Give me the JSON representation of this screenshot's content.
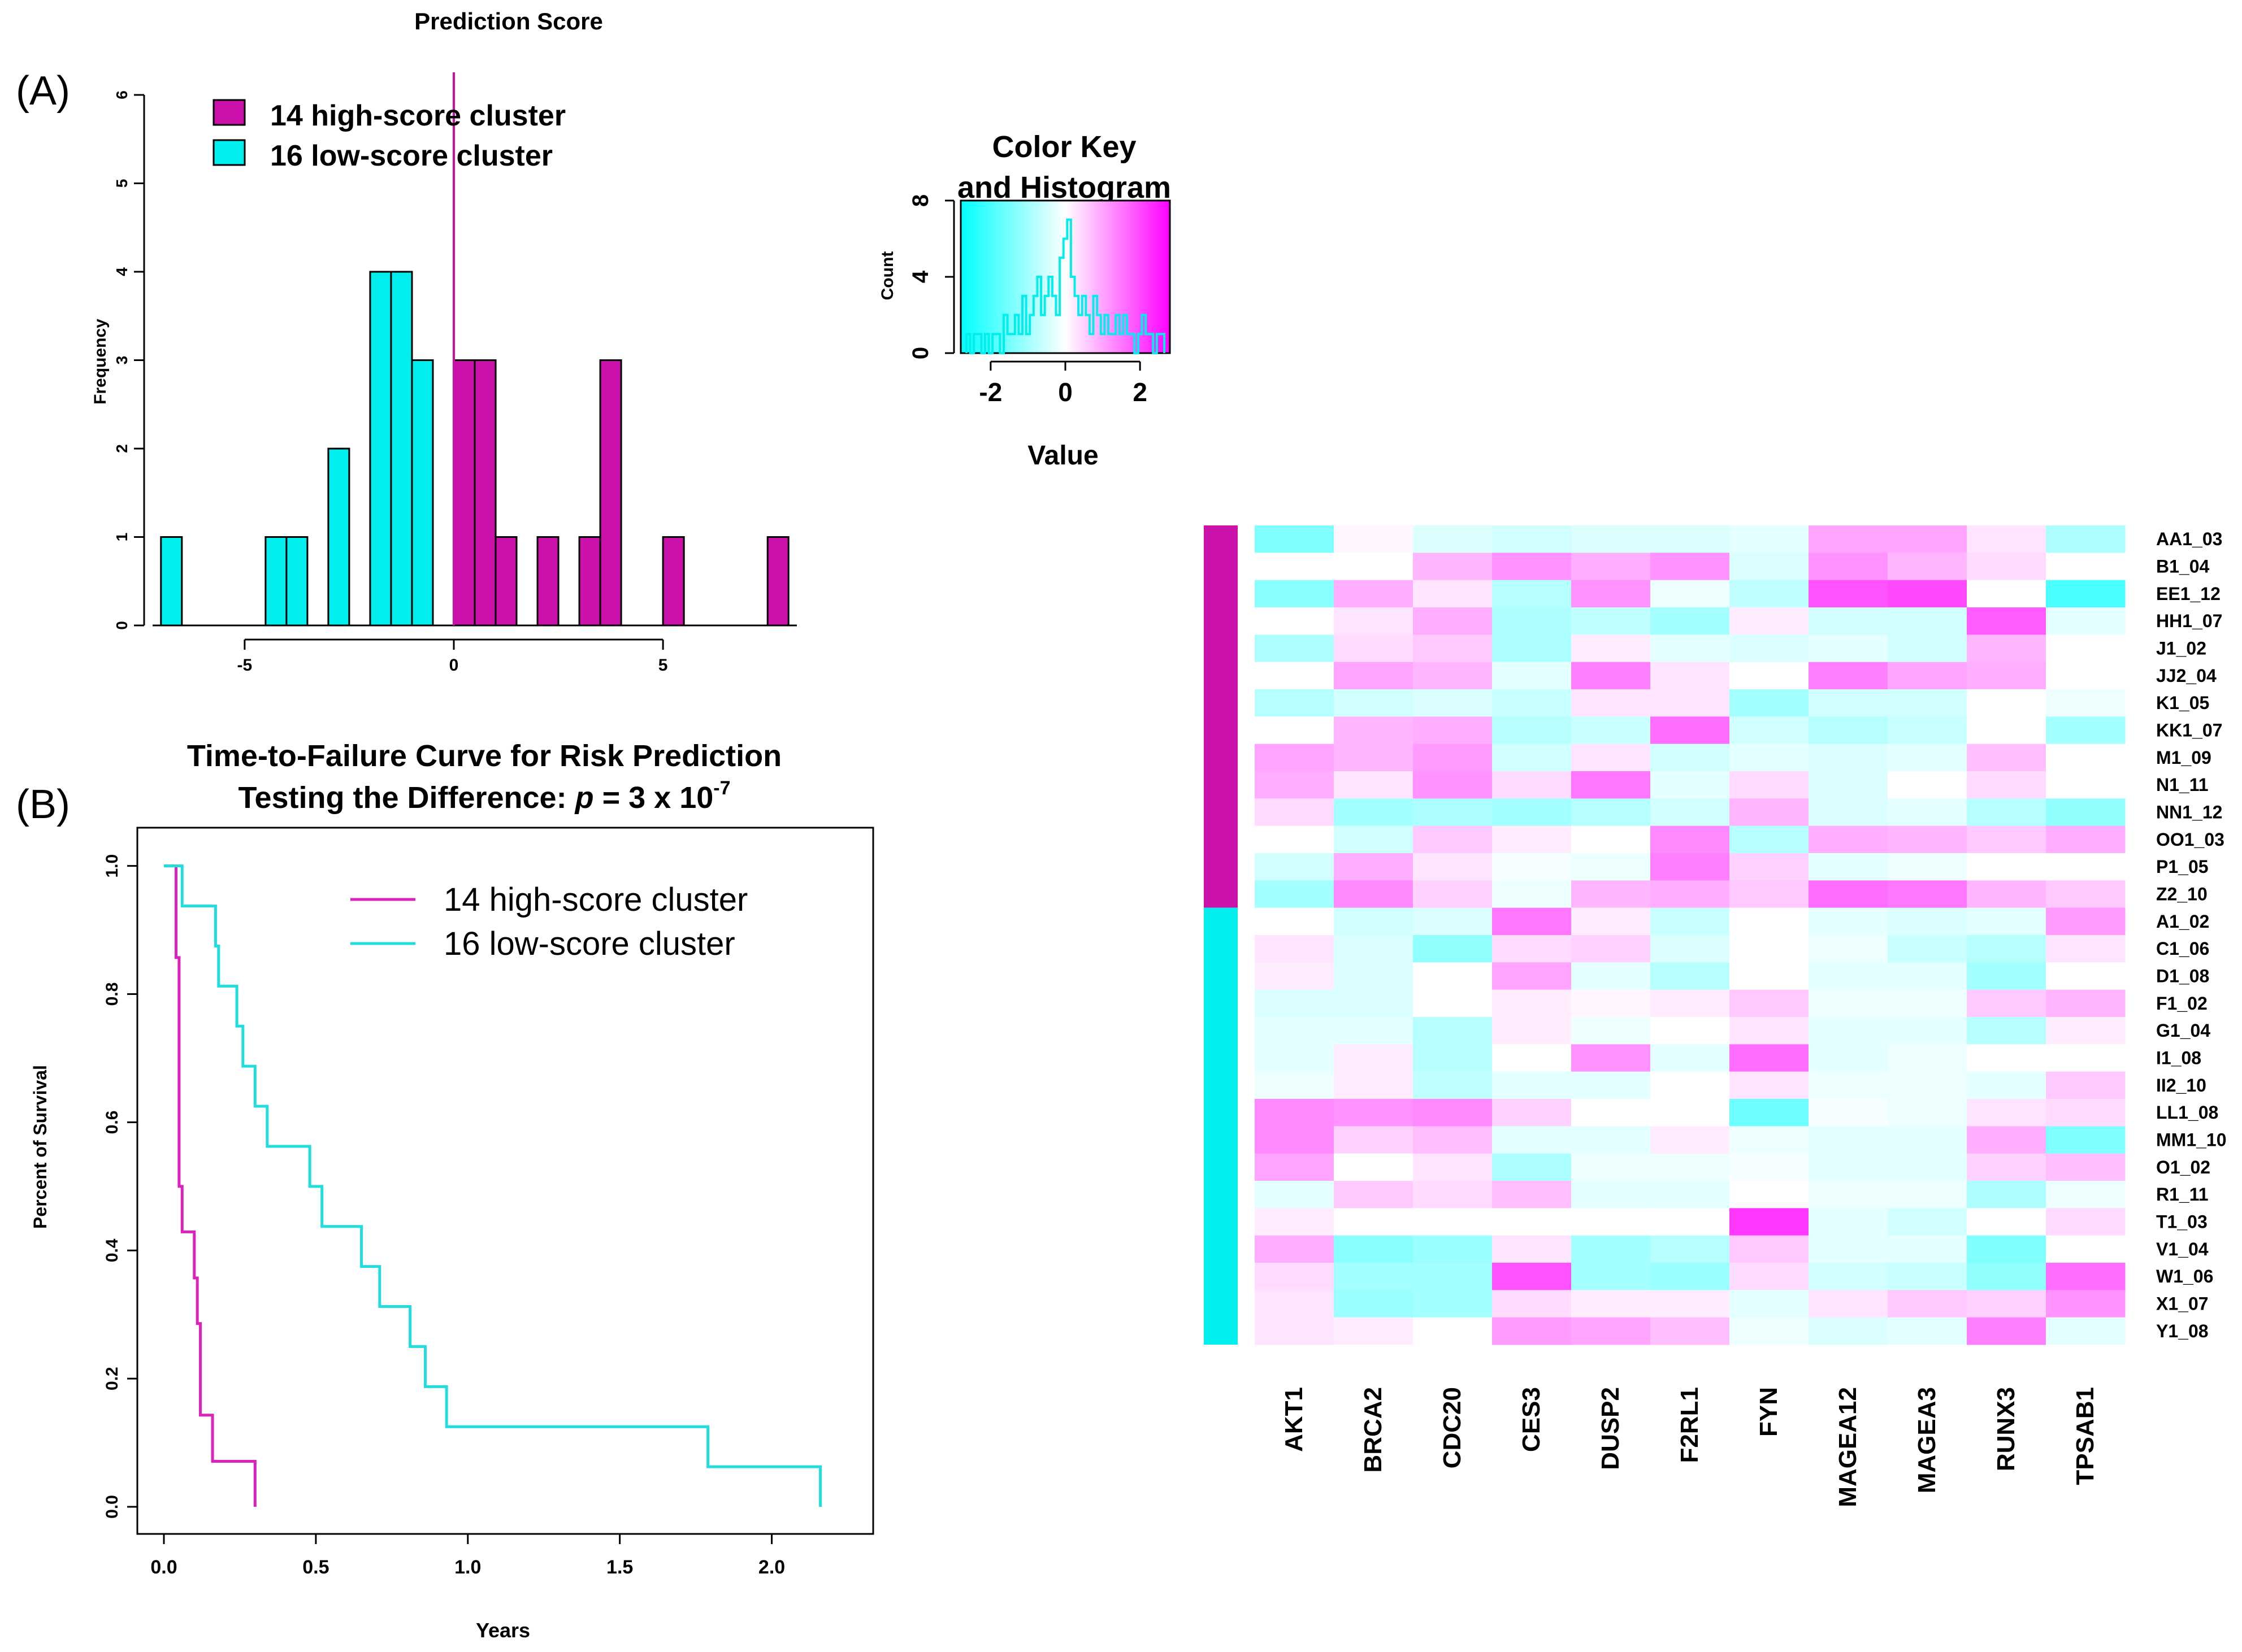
{
  "panel_labels": {
    "a": "(A)",
    "b": "(B)"
  },
  "chart_data": [
    {
      "id": "histogram",
      "type": "bar",
      "title": "Prediction Score",
      "xlabel": "",
      "ylabel": "Frequency",
      "xlim": [
        -7.2,
        8.2
      ],
      "ylim": [
        0,
        6
      ],
      "xticks": [
        -5,
        0,
        5
      ],
      "yticks": [
        0,
        1,
        2,
        3,
        4,
        5,
        6
      ],
      "bin_width": 0.5,
      "cutoff": 0,
      "series": [
        {
          "name": "14 high-score cluster",
          "color": "#cc11aa",
          "bins": [
            [
              0,
              0.5,
              3
            ],
            [
              0.5,
              1,
              3
            ],
            [
              1,
              1.5,
              1
            ],
            [
              2,
              2.5,
              1
            ],
            [
              3,
              3.5,
              1
            ],
            [
              3.5,
              4,
              3
            ],
            [
              5,
              5.5,
              1
            ],
            [
              7.5,
              8,
              1
            ]
          ]
        },
        {
          "name": "16 low-score cluster",
          "color": "#00eeee",
          "bins": [
            [
              -7,
              -6.5,
              1
            ],
            [
              -4.5,
              -4,
              1
            ],
            [
              -4,
              -3.5,
              1
            ],
            [
              -3,
              -2.5,
              2
            ],
            [
              -2,
              -1.5,
              4
            ],
            [
              -1.5,
              -1,
              4
            ],
            [
              -1,
              -0.5,
              3
            ]
          ]
        }
      ]
    },
    {
      "id": "color-key",
      "type": "bar",
      "title": "Color Key",
      "subtitle": "and Histogram",
      "xlabel": "Value",
      "ylabel": "Count",
      "xlim": [
        -2.8,
        2.8
      ],
      "ylim": [
        0,
        8
      ],
      "xticks": [
        -2,
        0,
        2
      ],
      "yticks": [
        0,
        4,
        8
      ],
      "x": [
        -2.6,
        -2.5,
        -2.4,
        -2.3,
        -2.2,
        -2.1,
        -2.0,
        -1.9,
        -1.8,
        -1.7,
        -1.6,
        -1.5,
        -1.4,
        -1.3,
        -1.2,
        -1.1,
        -1.0,
        -0.9,
        -0.8,
        -0.7,
        -0.6,
        -0.5,
        -0.4,
        -0.3,
        -0.2,
        -0.1,
        0.0,
        0.1,
        0.2,
        0.3,
        0.4,
        0.5,
        0.6,
        0.7,
        0.8,
        0.9,
        1.0,
        1.1,
        1.2,
        1.3,
        1.4,
        1.5,
        1.6,
        1.7,
        1.8,
        1.9,
        2.0,
        2.1,
        2.2,
        2.3,
        2.4,
        2.5,
        2.6
      ],
      "values": [
        1,
        0,
        1,
        1,
        0,
        1,
        0,
        1,
        1,
        0,
        2,
        1,
        1,
        2,
        1,
        3,
        1,
        2,
        3,
        4,
        2,
        3,
        4,
        3,
        2,
        5,
        6,
        7,
        4,
        3,
        2,
        3,
        2,
        1,
        3,
        2,
        1,
        2,
        1,
        1,
        2,
        1,
        2,
        1,
        1,
        0,
        1,
        2,
        1,
        1,
        0,
        1,
        1
      ]
    },
    {
      "id": "survival",
      "type": "line",
      "title": "Time-to-Failure Curve for Risk Prediction",
      "subtitle_prefix": "Testing the Difference: ",
      "subtitle_p": "p",
      "subtitle_eq": " = 3 x 10",
      "subtitle_exp": "-7",
      "xlabel": "Years",
      "ylabel": "Percent of Survival",
      "xlim": [
        0,
        2.25
      ],
      "ylim": [
        0,
        1.02
      ],
      "xticks": [
        "0.0",
        "0.5",
        "1.0",
        "1.5",
        "2.0"
      ],
      "yticks": [
        "0.0",
        "0.2",
        "0.4",
        "0.6",
        "0.8",
        "1.0"
      ],
      "series": [
        {
          "name": "14 high-score cluster",
          "color": "#dd22bb",
          "steps": [
            [
              0,
              1.0
            ],
            [
              0.04,
              0.857
            ],
            [
              0.05,
              0.5
            ],
            [
              0.06,
              0.429
            ],
            [
              0.1,
              0.357
            ],
            [
              0.11,
              0.286
            ],
            [
              0.12,
              0.143
            ],
            [
              0.16,
              0.071
            ],
            [
              0.3,
              0.0
            ]
          ]
        },
        {
          "name": "16 low-score cluster",
          "color": "#22dddd",
          "steps": [
            [
              0,
              1.0
            ],
            [
              0.06,
              0.9375
            ],
            [
              0.17,
              0.875
            ],
            [
              0.18,
              0.8125
            ],
            [
              0.24,
              0.75
            ],
            [
              0.26,
              0.6875
            ],
            [
              0.3,
              0.625
            ],
            [
              0.34,
              0.5625
            ],
            [
              0.48,
              0.5
            ],
            [
              0.52,
              0.4375
            ],
            [
              0.65,
              0.375
            ],
            [
              0.71,
              0.3125
            ],
            [
              0.81,
              0.25
            ],
            [
              0.86,
              0.1875
            ],
            [
              0.93,
              0.125
            ],
            [
              1.79,
              0.0625
            ],
            [
              2.16,
              0.0
            ]
          ]
        }
      ]
    },
    {
      "id": "heatmap",
      "type": "heatmap",
      "columns": [
        "AKT1",
        "BRCA2",
        "CDC20",
        "CES3",
        "DUSP2",
        "F2RL1",
        "FYN",
        "MAGEA12",
        "MAGEA3",
        "RUNX3",
        "TPSAB1"
      ],
      "rows": [
        "AA1_03",
        "B1_04",
        "EE1_12",
        "HH1_07",
        "J1_02",
        "JJ2_04",
        "K1_05",
        "KK1_07",
        "M1_09",
        "N1_11",
        "NN1_12",
        "OO1_03",
        "P1_05",
        "Z2_10",
        "A1_02",
        "C1_06",
        "D1_08",
        "F1_02",
        "G1_04",
        "I1_08",
        "II2_10",
        "LL1_08",
        "MM1_10",
        "O1_02",
        "R1_11",
        "T1_03",
        "V1_04",
        "W1_06",
        "X1_07",
        "Y1_08"
      ],
      "row_groups": [
        {
          "name": "14 high-score cluster",
          "color": "#cc11aa",
          "count": 14
        },
        {
          "name": "16 low-score cluster",
          "color": "#00eeee",
          "count": 16
        }
      ],
      "value_range": [
        -2.8,
        2.8
      ],
      "values": [
        [
          -1.4,
          0.1,
          -0.4,
          -0.5,
          -0.4,
          -0.4,
          -0.3,
          1.0,
          1.0,
          0.3,
          -0.9
        ],
        [
          0,
          0,
          0.8,
          1.2,
          0.9,
          1.2,
          -0.4,
          1.2,
          0.8,
          0.4,
          0
        ],
        [
          -1.3,
          0.9,
          0.3,
          -0.8,
          1.2,
          -0.2,
          -0.7,
          1.9,
          2.0,
          0,
          -2.0
        ],
        [
          0,
          0.3,
          0.9,
          -0.9,
          -0.7,
          -1.0,
          0.2,
          -0.5,
          -0.5,
          1.8,
          -0.3
        ],
        [
          -0.9,
          0.4,
          0.6,
          -0.9,
          0.2,
          -0.3,
          -0.4,
          -0.3,
          -0.5,
          0.8,
          0
        ],
        [
          0,
          1.0,
          0.8,
          -0.3,
          1.4,
          0.3,
          0,
          1.4,
          1.0,
          0.9,
          0
        ],
        [
          -0.8,
          -0.5,
          -0.4,
          -0.6,
          0.3,
          0.3,
          -1.0,
          -0.5,
          -0.5,
          0,
          -0.2
        ],
        [
          0,
          0.8,
          0.9,
          -0.8,
          -0.6,
          1.6,
          -0.5,
          -0.8,
          -0.6,
          0,
          -1.0
        ],
        [
          1.0,
          0.8,
          1.1,
          -0.5,
          0.3,
          -0.5,
          -0.3,
          -0.4,
          -0.3,
          0.7,
          0
        ],
        [
          0.9,
          0.3,
          1.2,
          0.4,
          1.5,
          -0.3,
          0.4,
          -0.4,
          0,
          0.4,
          0
        ],
        [
          0.4,
          -1.0,
          -0.9,
          -1.0,
          -0.8,
          -0.5,
          0.8,
          -0.4,
          -0.3,
          -0.8,
          -1.2
        ],
        [
          0,
          -0.5,
          0.6,
          0.2,
          0,
          1.3,
          -0.8,
          0.9,
          0.8,
          0.6,
          0.9
        ],
        [
          -0.5,
          0.9,
          0.3,
          -0.1,
          -0.2,
          1.4,
          0.5,
          -0.3,
          -0.2,
          0,
          0
        ],
        [
          -1.0,
          1.3,
          0.5,
          -0.2,
          0.8,
          0.9,
          0.6,
          1.6,
          1.5,
          0.8,
          0.6
        ],
        [
          0,
          -0.5,
          -0.4,
          1.5,
          0.2,
          -0.6,
          0,
          -0.3,
          -0.4,
          -0.3,
          1.1
        ],
        [
          0.3,
          -0.4,
          -1.2,
          0.4,
          0.5,
          -0.4,
          0,
          -0.2,
          -0.6,
          -0.8,
          0.3
        ],
        [
          0.2,
          -0.4,
          0,
          1.0,
          -0.3,
          -0.8,
          0,
          -0.3,
          -0.3,
          -1.0,
          0
        ],
        [
          -0.4,
          -0.4,
          0,
          0.2,
          0.1,
          0.2,
          0.6,
          -0.2,
          -0.2,
          0.6,
          0.8
        ],
        [
          -0.3,
          -0.3,
          -0.8,
          0.2,
          -0.2,
          0,
          0.3,
          -0.3,
          -0.3,
          -0.8,
          0.2
        ],
        [
          -0.3,
          0.2,
          -0.8,
          0,
          1.2,
          -0.3,
          1.6,
          -0.3,
          -0.2,
          0,
          0
        ],
        [
          -0.2,
          0.2,
          -0.7,
          -0.3,
          -0.3,
          0,
          0.3,
          -0.2,
          -0.2,
          -0.3,
          0.6
        ],
        [
          1.3,
          1.2,
          1.3,
          0.5,
          0,
          0,
          -1.6,
          -0.1,
          -0.2,
          0.3,
          0.4
        ],
        [
          1.3,
          0.5,
          0.7,
          -0.3,
          -0.3,
          0.2,
          -0.2,
          -0.3,
          -0.3,
          0.9,
          -1.4
        ],
        [
          1.0,
          0,
          0.3,
          -0.9,
          -0.2,
          -0.2,
          -0.1,
          -0.3,
          -0.3,
          0.5,
          0.7
        ],
        [
          -0.3,
          0.6,
          0.4,
          0.7,
          -0.3,
          -0.3,
          0,
          -0.2,
          -0.2,
          -0.9,
          -0.2
        ],
        [
          0.2,
          0,
          0,
          0,
          0,
          0,
          2.2,
          -0.3,
          -0.5,
          0,
          0.4
        ],
        [
          0.9,
          -1.3,
          -1.1,
          0.3,
          -1.0,
          -0.8,
          0.6,
          -0.3,
          -0.3,
          -1.4,
          0
        ],
        [
          0.4,
          -1.0,
          -1.0,
          1.9,
          -1.0,
          -1.1,
          0.4,
          -0.5,
          -0.6,
          -1.2,
          1.6
        ],
        [
          0.3,
          -1.1,
          -1.0,
          0.4,
          0.2,
          0.2,
          -0.3,
          0.3,
          0.6,
          0.5,
          1.2
        ],
        [
          0.3,
          0.2,
          0,
          1.1,
          1.0,
          0.7,
          -0.2,
          -0.4,
          -0.3,
          1.4,
          -0.3
        ]
      ]
    }
  ]
}
